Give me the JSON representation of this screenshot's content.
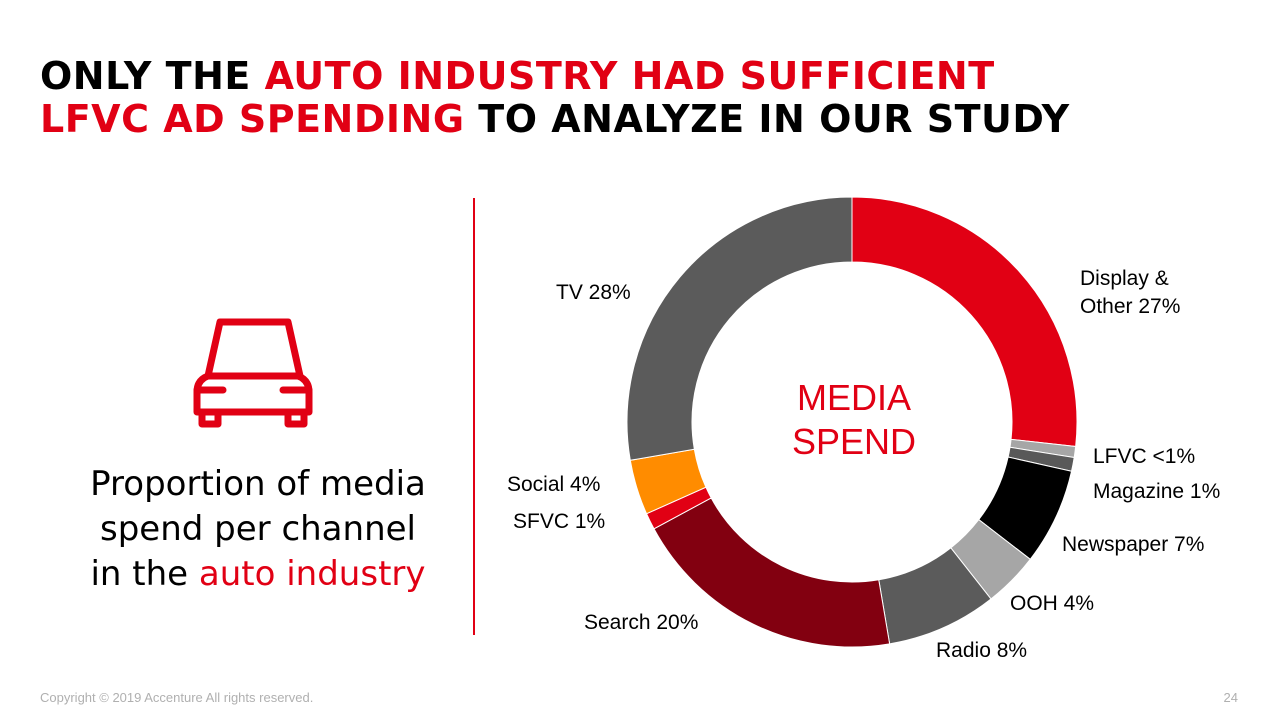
{
  "title": {
    "line1_black": "ONLY THE ",
    "line1_red": "AUTO INDUSTRY HAD SUFFICIENT",
    "line2_red": "LFVC AD SPENDING",
    "line2_black": " TO ANALYZE IN OUR STUDY"
  },
  "caption": {
    "line1": "Proportion of media",
    "line2": "spend per channel",
    "line3_black": "in the ",
    "line3_red": "auto industry"
  },
  "icon": "car-icon",
  "colors": {
    "accent": "#e10014"
  },
  "chart_data": {
    "type": "pie",
    "variant": "donut",
    "center_label": [
      "MEDIA",
      "SPEND"
    ],
    "slices": [
      {
        "label": "Display &",
        "label2": "Other 27%",
        "value": 27,
        "color": "#e10014"
      },
      {
        "label": "LFVC <1%",
        "value": 0.8,
        "color": "#a6a6a6"
      },
      {
        "label": "Magazine 1%",
        "value": 1,
        "color": "#595959"
      },
      {
        "label": "Newspaper 7%",
        "value": 7,
        "color": "#000000"
      },
      {
        "label": "OOH 4%",
        "value": 4,
        "color": "#a6a6a6"
      },
      {
        "label": "Radio 8%",
        "value": 8,
        "color": "#5b5b5b"
      },
      {
        "label": "Search 20%",
        "value": 20,
        "color": "#820010"
      },
      {
        "label": "SFVC 1%",
        "value": 1.2,
        "color": "#e10014"
      },
      {
        "label": "Social 4%",
        "value": 4,
        "color": "#ff8c00"
      },
      {
        "label": "TV 28%",
        "value": 28,
        "color": "#5b5b5b"
      }
    ]
  },
  "footer": {
    "copyright": "Copyright © 2019 Accenture All rights reserved.",
    "page": "24"
  }
}
